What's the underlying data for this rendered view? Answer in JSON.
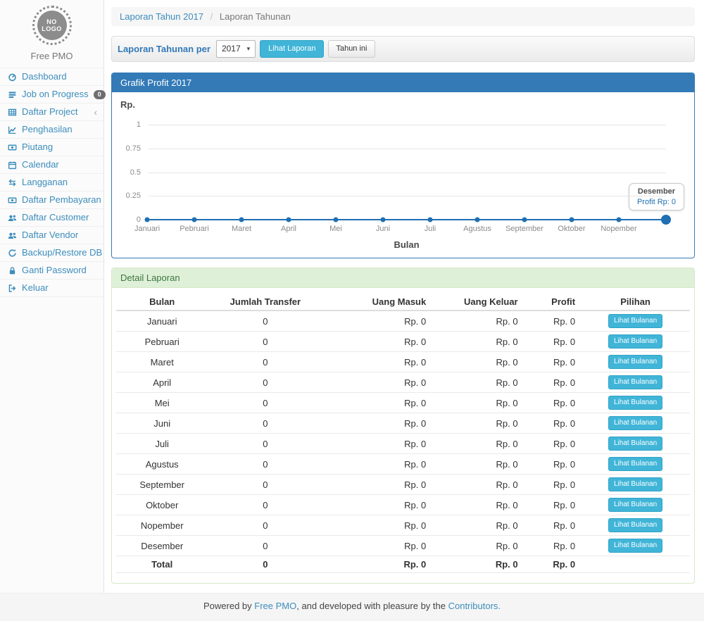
{
  "sidebar": {
    "logo_line1": "NO",
    "logo_line2": "LOGO",
    "brand": "Free PMO",
    "items": [
      {
        "icon": "dashboard-icon",
        "label": "Dashboard"
      },
      {
        "icon": "tasks-icon",
        "label": "Job on Progress",
        "badge": "0"
      },
      {
        "icon": "table-icon",
        "label": "Daftar Project",
        "chevron": "‹"
      },
      {
        "icon": "line-chart-icon",
        "label": "Penghasilan"
      },
      {
        "icon": "money-icon",
        "label": "Piutang"
      },
      {
        "icon": "calendar-icon",
        "label": "Calendar"
      },
      {
        "icon": "exchange-icon",
        "label": "Langganan"
      },
      {
        "icon": "money-icon",
        "label": "Daftar Pembayaran"
      },
      {
        "icon": "users-icon",
        "label": "Daftar Customer"
      },
      {
        "icon": "users-icon",
        "label": "Daftar Vendor"
      },
      {
        "icon": "refresh-icon",
        "label": "Backup/Restore DB"
      },
      {
        "icon": "lock-icon",
        "label": "Ganti Password"
      },
      {
        "icon": "sign-out-icon",
        "label": "Keluar"
      }
    ]
  },
  "breadcrumb": {
    "link": "Laporan Tahun 2017",
    "separator": "/",
    "current": "Laporan Tahunan"
  },
  "filter": {
    "label": "Laporan Tahunan per",
    "year_selected": "2017",
    "view_button": "Lihat Laporan",
    "this_year_button": "Tahun ini"
  },
  "icons": {
    "caret_down": "▾"
  },
  "chart_data": {
    "type": "line",
    "title": "Grafik Profit 2017",
    "xlabel": "Bulan",
    "ylabel": "Rp.",
    "categories": [
      "Januari",
      "Pebruari",
      "Maret",
      "April",
      "Mei",
      "Juni",
      "Juli",
      "Agustus",
      "September",
      "Oktober",
      "Nopember",
      "Desember"
    ],
    "series": [
      {
        "name": "Profit",
        "values": [
          0,
          0,
          0,
          0,
          0,
          0,
          0,
          0,
          0,
          0,
          0,
          0
        ]
      }
    ],
    "y_ticks": [
      0,
      0.25,
      0.5,
      0.75,
      1
    ],
    "ylim": [
      0,
      1
    ],
    "grid": true,
    "legend": "none",
    "line_color": "#1f6fb2",
    "highlight_last_point": true,
    "x_label_hidden_for": "Desember",
    "tooltip": {
      "title": "Desember",
      "text": "Profit Rp: 0"
    }
  },
  "detail": {
    "title": "Detail Laporan",
    "columns": [
      "Bulan",
      "Jumlah Transfer",
      "Uang Masuk",
      "Uang Keluar",
      "Profit",
      "Pilihan"
    ],
    "action_label": "Lihat Bulanan",
    "rows": [
      {
        "bulan": "Januari",
        "jumlah_transfer": "0",
        "uang_masuk": "Rp. 0",
        "uang_keluar": "Rp. 0",
        "profit": "Rp. 0"
      },
      {
        "bulan": "Pebruari",
        "jumlah_transfer": "0",
        "uang_masuk": "Rp. 0",
        "uang_keluar": "Rp. 0",
        "profit": "Rp. 0"
      },
      {
        "bulan": "Maret",
        "jumlah_transfer": "0",
        "uang_masuk": "Rp. 0",
        "uang_keluar": "Rp. 0",
        "profit": "Rp. 0"
      },
      {
        "bulan": "April",
        "jumlah_transfer": "0",
        "uang_masuk": "Rp. 0",
        "uang_keluar": "Rp. 0",
        "profit": "Rp. 0"
      },
      {
        "bulan": "Mei",
        "jumlah_transfer": "0",
        "uang_masuk": "Rp. 0",
        "uang_keluar": "Rp. 0",
        "profit": "Rp. 0"
      },
      {
        "bulan": "Juni",
        "jumlah_transfer": "0",
        "uang_masuk": "Rp. 0",
        "uang_keluar": "Rp. 0",
        "profit": "Rp. 0"
      },
      {
        "bulan": "Juli",
        "jumlah_transfer": "0",
        "uang_masuk": "Rp. 0",
        "uang_keluar": "Rp. 0",
        "profit": "Rp. 0"
      },
      {
        "bulan": "Agustus",
        "jumlah_transfer": "0",
        "uang_masuk": "Rp. 0",
        "uang_keluar": "Rp. 0",
        "profit": "Rp. 0"
      },
      {
        "bulan": "September",
        "jumlah_transfer": "0",
        "uang_masuk": "Rp. 0",
        "uang_keluar": "Rp. 0",
        "profit": "Rp. 0"
      },
      {
        "bulan": "Oktober",
        "jumlah_transfer": "0",
        "uang_masuk": "Rp. 0",
        "uang_keluar": "Rp. 0",
        "profit": "Rp. 0"
      },
      {
        "bulan": "Nopember",
        "jumlah_transfer": "0",
        "uang_masuk": "Rp. 0",
        "uang_keluar": "Rp. 0",
        "profit": "Rp. 0"
      },
      {
        "bulan": "Desember",
        "jumlah_transfer": "0",
        "uang_masuk": "Rp. 0",
        "uang_keluar": "Rp. 0",
        "profit": "Rp. 0"
      }
    ],
    "total": {
      "bulan": "Total",
      "jumlah_transfer": "0",
      "uang_masuk": "Rp. 0",
      "uang_keluar": "Rp. 0",
      "profit": "Rp. 0"
    }
  },
  "footer": {
    "prefix": "Powered by ",
    "link1": "Free PMO",
    "middle": ", and developed with pleasure by the ",
    "link2": "Contributors."
  },
  "colors": {
    "primary_panel": "#337ab7",
    "success_panel_bg": "#dff0d8",
    "success_panel_text": "#3c763d",
    "info_button": "#41b5d8",
    "link_blue": "#3c8dbc",
    "chart_line": "#1f6fb2",
    "footer_bg": "#f5f5f5"
  }
}
